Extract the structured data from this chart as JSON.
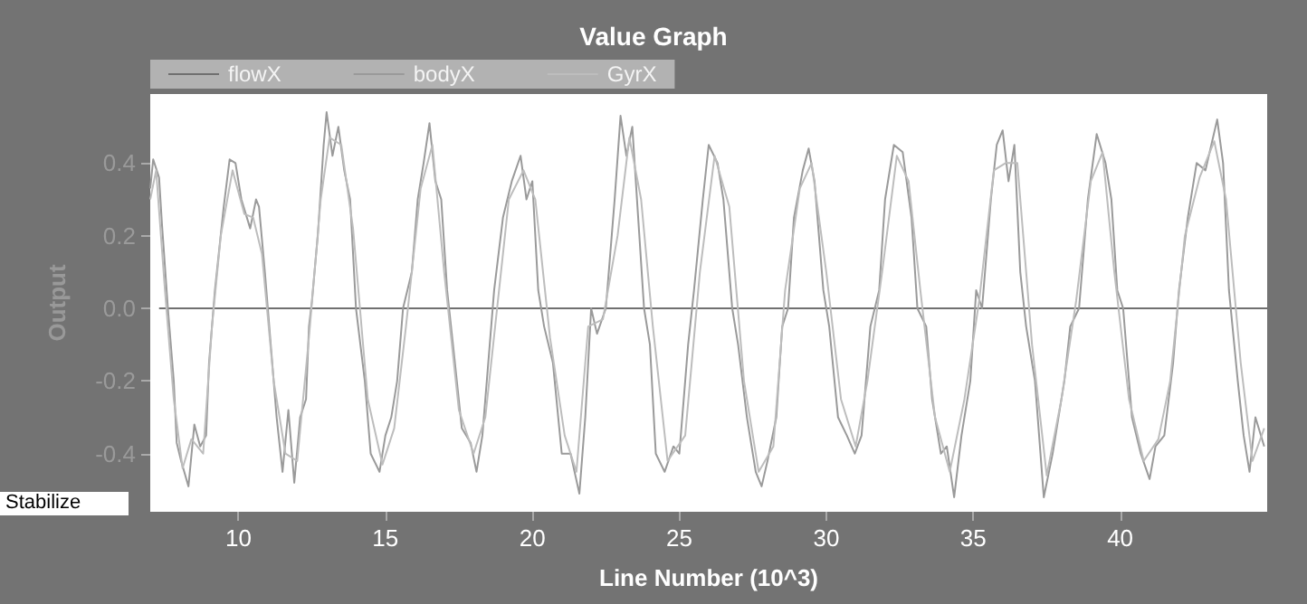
{
  "chart_data": {
    "type": "line",
    "title": "Value Graph",
    "xlabel": "Line Number (10^3)",
    "ylabel": "Output",
    "xlim": [
      7,
      45
    ],
    "ylim": [
      -0.56,
      0.59
    ],
    "xticks": [
      10,
      15,
      20,
      25,
      30,
      35,
      40
    ],
    "yticks": [
      {
        "value": -0.4,
        "label": "-0.4"
      },
      {
        "value": -0.2,
        "label": "-0.2"
      },
      {
        "value": 0,
        "label": "0.0"
      },
      {
        "value": 0.2,
        "label": "0.2"
      },
      {
        "value": 0.4,
        "label": "0.4"
      }
    ],
    "legend": "top left",
    "marker": "none",
    "line_style": "solid",
    "grid": false,
    "annotations": [
      "Stabilize"
    ],
    "series": [
      {
        "name": "flowX",
        "color": "#707070",
        "x": [
          7.3,
          45
        ],
        "values": [
          0,
          0
        ]
      },
      {
        "name": "bodyX",
        "color": "#9a9a9a",
        "x": [
          7.0,
          7.1,
          7.3,
          7.4,
          7.6,
          7.8,
          7.9,
          8.05,
          8.3,
          8.5,
          8.7,
          8.9,
          9.0,
          9.2,
          9.5,
          9.7,
          9.9,
          10.1,
          10.4,
          10.6,
          10.7,
          10.9,
          11.1,
          11.3,
          11.5,
          11.7,
          11.9,
          12.1,
          12.3,
          12.4,
          12.5,
          12.7,
          12.9,
          13.0,
          13.2,
          13.4,
          13.6,
          13.8,
          14.0,
          14.3,
          14.5,
          14.8,
          15.0,
          15.2,
          15.4,
          15.6,
          15.9,
          16.1,
          16.3,
          16.5,
          16.7,
          16.9,
          17.1,
          17.3,
          17.6,
          17.9,
          18.1,
          18.3,
          18.5,
          18.7,
          19.0,
          19.3,
          19.6,
          19.8,
          20.0,
          20.2,
          20.4,
          20.7,
          21.0,
          21.3,
          21.6,
          21.8,
          22.0,
          22.2,
          22.5,
          22.8,
          23.0,
          23.2,
          23.4,
          23.6,
          23.8,
          24.0,
          24.2,
          24.5,
          24.8,
          25.0,
          25.3,
          25.5,
          25.8,
          26.0,
          26.3,
          26.5,
          26.8,
          27.0,
          27.3,
          27.6,
          27.8,
          28.0,
          28.3,
          28.5,
          28.7,
          28.9,
          29.2,
          29.4,
          29.6,
          29.9,
          30.1,
          30.4,
          30.7,
          30.97,
          31.2,
          31.5,
          31.8,
          32.0,
          32.3,
          32.6,
          32.9,
          33.1,
          33.4,
          33.6,
          33.9,
          34.1,
          34.35,
          34.6,
          34.9,
          35.1,
          35.3,
          35.6,
          35.8,
          36.0,
          36.2,
          36.4,
          36.6,
          36.8,
          37.1,
          37.4,
          37.7,
          37.9,
          38.1,
          38.3,
          38.6,
          38.9,
          39.2,
          39.5,
          39.7,
          39.9,
          40.1,
          40.4,
          40.7,
          41.0,
          41.2,
          41.5,
          41.8,
          42.0,
          42.3,
          42.6,
          42.9,
          43.1,
          43.3,
          43.5,
          43.7,
          44.0,
          44.2,
          44.4,
          44.6,
          44.9
        ],
        "values": [
          0.33,
          0.41,
          0.36,
          0.23,
          0.0,
          -0.2,
          -0.37,
          -0.42,
          -0.49,
          -0.32,
          -0.38,
          -0.35,
          -0.15,
          0.05,
          0.28,
          0.41,
          0.4,
          0.3,
          0.22,
          0.3,
          0.28,
          0.1,
          -0.1,
          -0.3,
          -0.45,
          -0.28,
          -0.48,
          -0.3,
          -0.25,
          -0.05,
          0.02,
          0.2,
          0.45,
          0.54,
          0.42,
          0.5,
          0.38,
          0.3,
          0.0,
          -0.2,
          -0.4,
          -0.45,
          -0.35,
          -0.3,
          -0.2,
          0.0,
          0.1,
          0.3,
          0.4,
          0.51,
          0.35,
          0.3,
          0.05,
          -0.1,
          -0.33,
          -0.37,
          -0.45,
          -0.35,
          -0.15,
          0.05,
          0.25,
          0.35,
          0.42,
          0.3,
          0.35,
          0.05,
          -0.05,
          -0.15,
          -0.4,
          -0.4,
          -0.51,
          -0.3,
          0.0,
          -0.07,
          0.0,
          0.3,
          0.53,
          0.42,
          0.5,
          0.25,
          0.0,
          -0.1,
          -0.4,
          -0.45,
          -0.38,
          -0.4,
          -0.1,
          0.05,
          0.3,
          0.45,
          0.4,
          0.3,
          0.0,
          -0.1,
          -0.3,
          -0.45,
          -0.49,
          -0.42,
          -0.3,
          -0.05,
          0.0,
          0.25,
          0.38,
          0.44,
          0.35,
          0.05,
          -0.05,
          -0.3,
          -0.35,
          -0.4,
          -0.35,
          -0.05,
          0.05,
          0.3,
          0.45,
          0.43,
          0.25,
          0.0,
          -0.05,
          -0.25,
          -0.4,
          -0.38,
          -0.52,
          -0.35,
          -0.2,
          0.05,
          0.0,
          0.3,
          0.45,
          0.49,
          0.35,
          0.45,
          0.1,
          -0.05,
          -0.2,
          -0.52,
          -0.4,
          -0.3,
          -0.2,
          -0.05,
          0.0,
          0.3,
          0.48,
          0.4,
          0.3,
          0.05,
          0.0,
          -0.3,
          -0.4,
          -0.47,
          -0.38,
          -0.35,
          -0.15,
          0.05,
          0.25,
          0.4,
          0.38,
          0.45,
          0.52,
          0.4,
          0.05,
          -0.2,
          -0.35,
          -0.45,
          -0.3,
          -0.38
        ]
      },
      {
        "name": "GyrX",
        "color": "#bdbdbd",
        "x": [
          7.0,
          7.2,
          7.5,
          7.8,
          8.1,
          8.4,
          8.8,
          9.1,
          9.4,
          9.8,
          10.2,
          10.5,
          10.8,
          11.2,
          11.6,
          12.0,
          12.4,
          12.8,
          13.1,
          13.5,
          13.9,
          14.4,
          14.9,
          15.3,
          15.7,
          16.2,
          16.6,
          17.0,
          17.5,
          18.0,
          18.4,
          18.8,
          19.2,
          19.7,
          20.1,
          20.6,
          21.1,
          21.5,
          21.9,
          22.4,
          22.9,
          23.3,
          23.7,
          24.1,
          24.6,
          25.2,
          25.7,
          26.2,
          26.7,
          27.2,
          27.7,
          28.2,
          28.6,
          29.1,
          29.5,
          30.0,
          30.5,
          31.0,
          31.4,
          31.9,
          32.4,
          32.8,
          33.2,
          33.7,
          34.2,
          34.7,
          35.2,
          35.7,
          36.1,
          36.5,
          37.0,
          37.5,
          38.0,
          38.5,
          39.0,
          39.4,
          39.8,
          40.3,
          40.8,
          41.3,
          41.7,
          42.2,
          42.7,
          43.2,
          43.6,
          44.1,
          44.5,
          44.9
        ],
        "values": [
          0.3,
          0.38,
          0.05,
          -0.25,
          -0.44,
          -0.36,
          -0.4,
          -0.05,
          0.2,
          0.38,
          0.26,
          0.25,
          0.15,
          -0.2,
          -0.4,
          -0.42,
          -0.08,
          0.3,
          0.47,
          0.45,
          0.22,
          -0.25,
          -0.43,
          -0.33,
          -0.05,
          0.33,
          0.45,
          0.1,
          -0.28,
          -0.4,
          -0.3,
          0.0,
          0.3,
          0.38,
          0.3,
          -0.08,
          -0.35,
          -0.45,
          -0.05,
          -0.03,
          0.2,
          0.47,
          0.3,
          -0.05,
          -0.42,
          -0.35,
          0.1,
          0.42,
          0.28,
          -0.2,
          -0.45,
          -0.38,
          0.05,
          0.33,
          0.4,
          0.1,
          -0.25,
          -0.38,
          -0.2,
          0.1,
          0.42,
          0.35,
          0.05,
          -0.3,
          -0.45,
          -0.25,
          0.02,
          0.38,
          0.4,
          0.4,
          -0.1,
          -0.46,
          -0.25,
          0.02,
          0.35,
          0.43,
          0.1,
          -0.25,
          -0.42,
          -0.36,
          -0.2,
          0.2,
          0.36,
          0.46,
          0.3,
          -0.15,
          -0.42,
          -0.33
        ]
      }
    ]
  }
}
